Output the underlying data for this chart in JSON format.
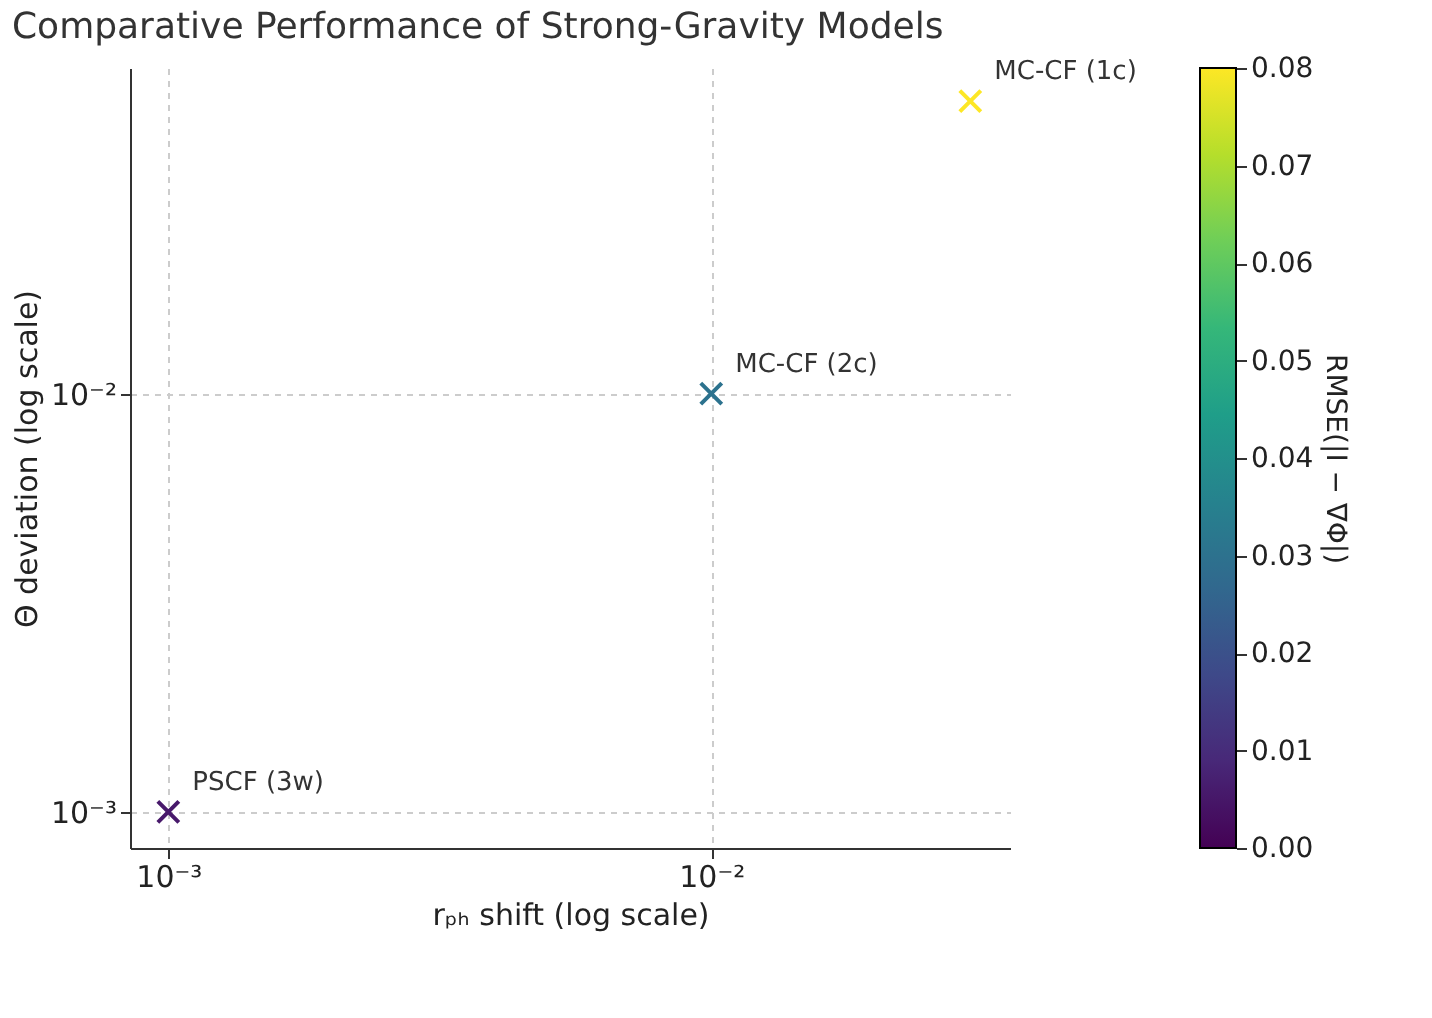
{
  "chart_data": {
    "type": "scatter",
    "title": "Comparative Performance of Strong-Gravity Models",
    "xlabel": "rₚₕ shift (log scale)",
    "ylabel": "Θ deviation (log scale)",
    "clabel": "RMSE(|I − ∇Φ|)",
    "x": [
      0.001,
      0.01,
      0.03
    ],
    "values": [
      0.001,
      0.01,
      0.05
    ],
    "cvalues": [
      0.005,
      0.03,
      0.08
    ],
    "clim": [
      0,
      0.08
    ],
    "cticks": [
      {
        "value": 0,
        "label": "0.00"
      },
      0.01,
      0.02,
      0.03,
      0.04,
      0.05,
      0.06,
      0.07,
      0.08
    ],
    "xlim": [
      0.00085,
      0.0355
    ],
    "ylim": [
      0.00082,
      0.06
    ],
    "xticks": [
      {
        "value": 0.001,
        "label": "10⁻³"
      },
      {
        "value": 0.01,
        "label": "10⁻²"
      }
    ],
    "yticks": [
      {
        "value": 0.001,
        "label": "10⁻³"
      },
      {
        "value": 0.01,
        "label": "10⁻²"
      }
    ],
    "log": "xy",
    "grid": true,
    "marker": "cross",
    "annotations": [
      {
        "text": "PSCF (3w)",
        "x": 0.001,
        "y": 0.001
      },
      {
        "text": "MC-CF (2c)",
        "x": 0.01,
        "y": 0.01
      },
      {
        "text": "MC-CF (1c)",
        "x": 0.03,
        "y": 0.05
      }
    ]
  }
}
